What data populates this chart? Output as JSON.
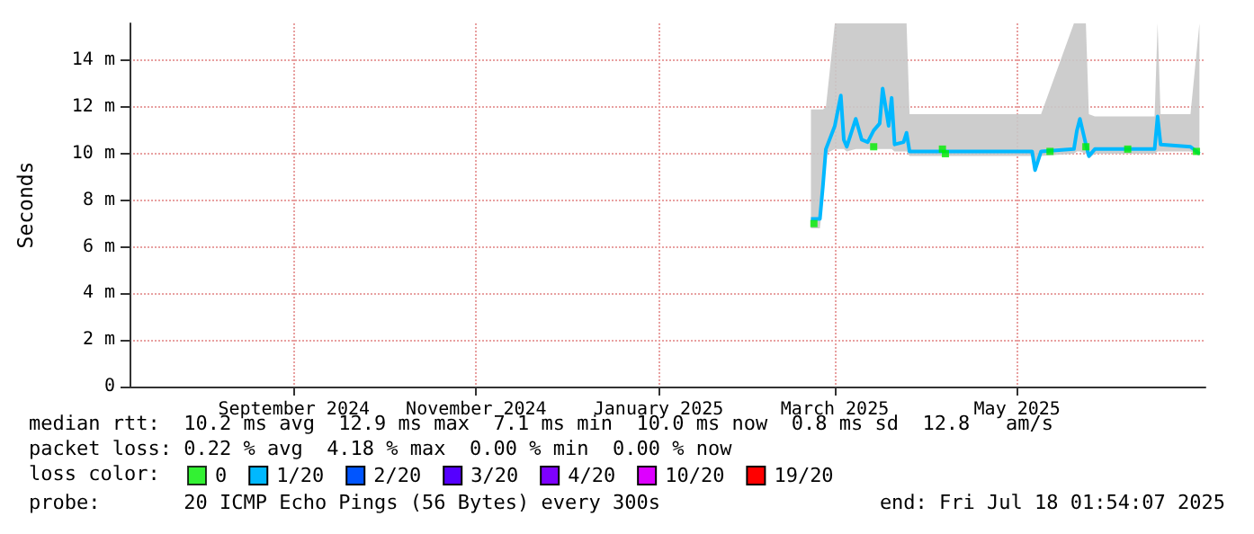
{
  "chart_data": {
    "type": "line",
    "ylabel": "Seconds",
    "legend_title": "loss color:",
    "legend": "bottom",
    "grid": true,
    "xlim": [
      "2024-07-23",
      "2025-07-18"
    ],
    "xticks": [
      {
        "value": "2024-09-16",
        "label": "September 2024"
      },
      {
        "value": "2024-11-16",
        "label": "November 2024"
      },
      {
        "value": "2025-01-16",
        "label": "January 2025"
      },
      {
        "value": "2025-03-16",
        "label": "March 2025"
      },
      {
        "value": "2025-05-16",
        "label": "May 2025"
      }
    ],
    "ylim": [
      0,
      15.6
    ],
    "yticks": [
      0,
      {
        "value": 2,
        "label": "2 m"
      },
      {
        "value": 4,
        "label": "4 m"
      },
      {
        "value": 6,
        "label": "6 m"
      },
      {
        "value": 8,
        "label": "8 m"
      },
      {
        "value": 10,
        "label": "10 m"
      },
      {
        "value": 12,
        "label": "12 m"
      },
      {
        "value": 14,
        "label": "14 m"
      }
    ],
    "series": [
      {
        "name": "0",
        "color": "#00ee00",
        "type": "scatter",
        "x": [
          "2025-03-09",
          "2025-03-29",
          "2025-04-21",
          "2025-04-22",
          "2025-05-27",
          "2025-06-08",
          "2025-06-22",
          "2025-07-15"
        ],
        "values": [
          7.0,
          10.3,
          10.2,
          10.0,
          10.1,
          10.3,
          10.2,
          10.1
        ]
      },
      {
        "name": "1/20",
        "color": "#00b8ff",
        "x": [
          "2025-03-08",
          "2025-03-11",
          "2025-03-12",
          "2025-03-13",
          "2025-03-16",
          "2025-03-18",
          "2025-03-19",
          "2025-03-20",
          "2025-03-23",
          "2025-03-25",
          "2025-03-27",
          "2025-03-29",
          "2025-03-31",
          "2025-04-01",
          "2025-04-03",
          "2025-04-04",
          "2025-04-05",
          "2025-04-08",
          "2025-04-09",
          "2025-04-10",
          "2025-05-21",
          "2025-05-22",
          "2025-05-24",
          "2025-06-04",
          "2025-06-05",
          "2025-06-06",
          "2025-06-08",
          "2025-06-09",
          "2025-06-11",
          "2025-07-01",
          "2025-07-02",
          "2025-07-03",
          "2025-07-13",
          "2025-07-16"
        ],
        "values": [
          7.2,
          7.2,
          8.6,
          10.2,
          11.2,
          12.5,
          10.6,
          10.3,
          11.5,
          10.6,
          10.5,
          11.0,
          11.3,
          12.8,
          11.2,
          12.4,
          10.4,
          10.5,
          10.9,
          10.1,
          10.1,
          9.3,
          10.1,
          10.2,
          11.0,
          11.5,
          10.4,
          9.9,
          10.2,
          10.2,
          11.6,
          10.4,
          10.3,
          10.0
        ],
        "lower": [
          6.8,
          6.8,
          8.0,
          10.0,
          10.2,
          10.2,
          10.2,
          10.1,
          10.2,
          10.2,
          10.2,
          10.2,
          10.2,
          10.2,
          10.2,
          10.2,
          10.1,
          10.1,
          10.1,
          9.9,
          9.9,
          9.2,
          9.9,
          10.0,
          10.1,
          10.1,
          10.0,
          9.8,
          10.0,
          10.0,
          10.1,
          10.1,
          10.1,
          9.9
        ],
        "upper": [
          11.9,
          11.9,
          11.9,
          12.0,
          15.6,
          15.6,
          15.6,
          15.6,
          15.6,
          15.6,
          15.6,
          15.6,
          15.6,
          15.6,
          15.6,
          15.6,
          15.6,
          15.6,
          15.6,
          11.7,
          11.7,
          11.7,
          11.7,
          15.6,
          15.6,
          15.6,
          15.6,
          11.7,
          11.6,
          11.6,
          15.6,
          11.7,
          11.7,
          15.6
        ]
      },
      {
        "name": "2/20",
        "color": "#0055ff",
        "values": [
          null
        ]
      },
      {
        "name": "3/20",
        "color": "#5500ff",
        "values": [
          null
        ]
      },
      {
        "name": "4/20",
        "color": "#7e00ff",
        "values": [
          null
        ]
      },
      {
        "name": "10/20",
        "color": "#dd00ff",
        "values": [
          null
        ]
      },
      {
        "name": "19/20",
        "color": "#ff0000",
        "values": [
          null
        ]
      }
    ],
    "annotations": [
      "median rtt:  10.2 ms avg  12.9 ms max  7.1 ms min  10.0 ms now  0.8 ms sd  12.8   am/s",
      "packet loss: 0.22 % avg  4.18 % max  0.00 % min  0.00 % now",
      "probe:       20 ICMP Echo Pings (56 Bytes) every 300s",
      "end: Fri Jul 18 01:54:07 2025"
    ]
  }
}
